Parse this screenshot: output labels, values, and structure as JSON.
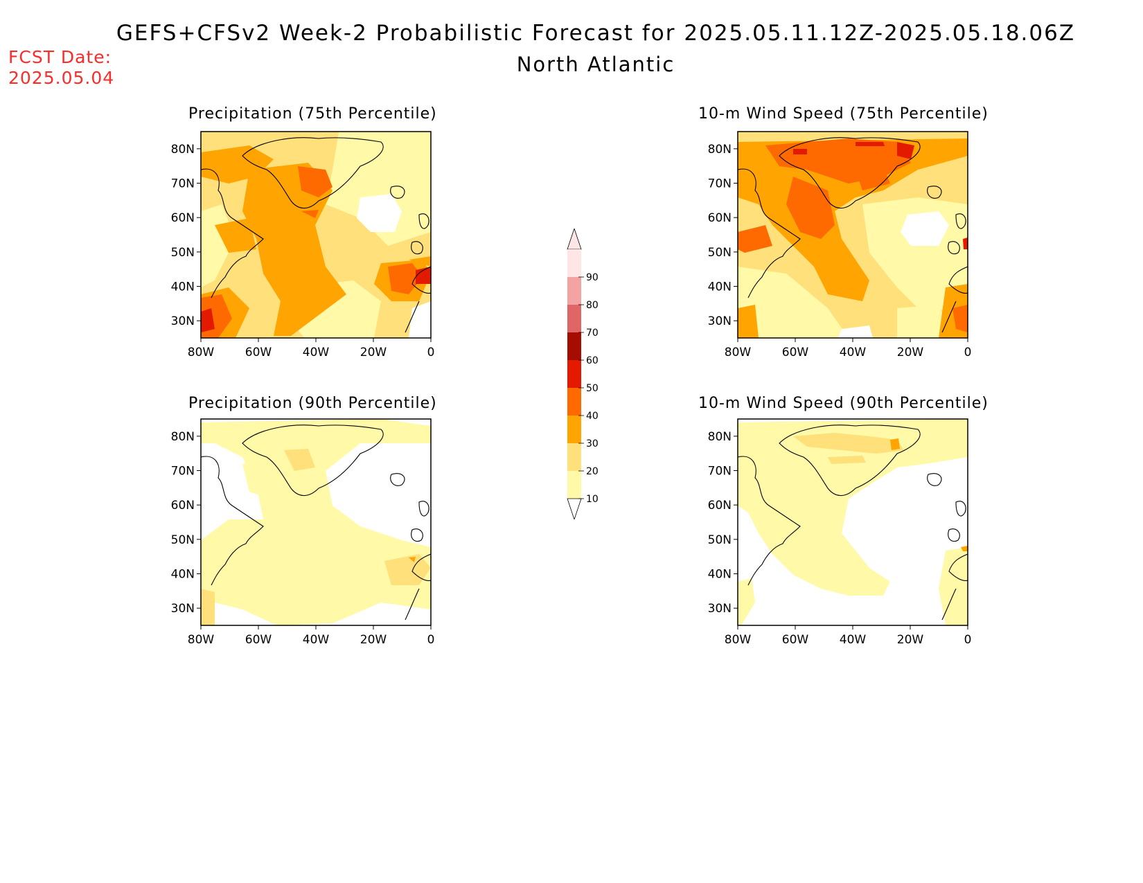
{
  "header": {
    "title": "GEFS+CFSv2 Week-2 Probabilistic Forecast for 2025.05.11.12Z-2025.05.18.06Z",
    "region": "North Atlantic",
    "fcst_label": "FCST Date:",
    "fcst_date": "2025.05.04"
  },
  "panels": [
    {
      "title": "Precipitation (75th Percentile)",
      "variable": "precip",
      "percentile": 75
    },
    {
      "title": "10-m Wind Speed (75th Percentile)",
      "variable": "wind",
      "percentile": 75
    },
    {
      "title": "Precipitation (90th Percentile)",
      "variable": "precip",
      "percentile": 90
    },
    {
      "title": "10-m Wind Speed (90th Percentile)",
      "variable": "wind",
      "percentile": 90
    }
  ],
  "axes": {
    "lat_ticks": [
      "80N",
      "70N",
      "60N",
      "50N",
      "40N",
      "30N"
    ],
    "lon_ticks": [
      "80W",
      "60W",
      "40W",
      "20W",
      "0"
    ],
    "lat_range": [
      25,
      85
    ],
    "lon_range": [
      -80,
      0
    ]
  },
  "colorbar": {
    "labels": [
      "90",
      "80",
      "70",
      "60",
      "50",
      "40",
      "30",
      "20",
      "10"
    ],
    "colors": [
      "#ffe5e5",
      "#f4a3a3",
      "#e06565",
      "#a50d00",
      "#e31a00",
      "#ff6a00",
      "#ffa400",
      "#ffe07a",
      "#fff9a8"
    ]
  },
  "palette": {
    "c10": "#fff9a8",
    "c20": "#ffe07a",
    "c30": "#ffa400",
    "c40": "#ff6a00",
    "c50": "#e31a00",
    "c60": "#a50d00"
  }
}
